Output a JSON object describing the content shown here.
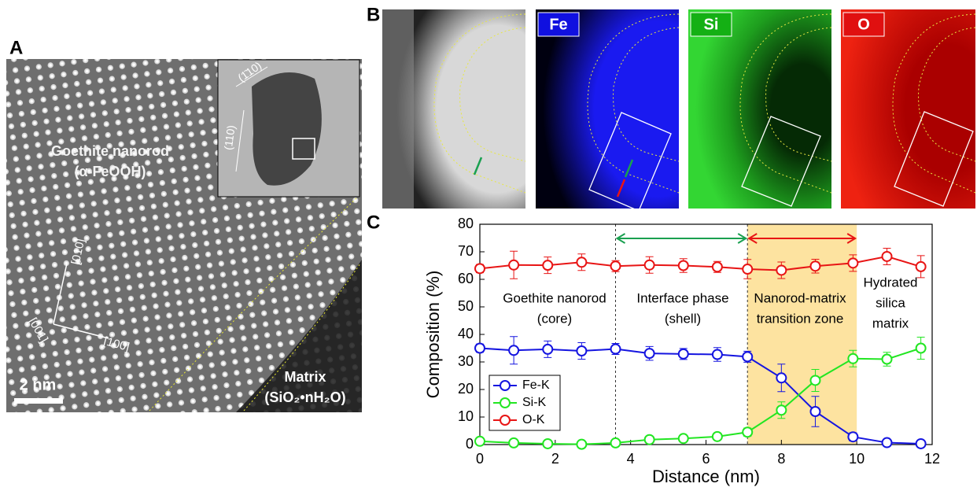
{
  "panel_labels": [
    "A",
    "B",
    "C"
  ],
  "panel_a": {
    "title_lines": [
      "Goethite nanorod",
      "(α-FeOOH)"
    ],
    "axes": [
      "[010]",
      "[001]",
      "[100]"
    ],
    "scale_bar": "2 nm",
    "matrix_lines": [
      "Matrix",
      "(SiO₂•nH₂O)"
    ],
    "inset_planes": [
      "(1̄10)",
      "(110)"
    ]
  },
  "panel_b": {
    "maps": [
      "Fe",
      "Si",
      "O"
    ]
  },
  "chart_data": {
    "type": "line",
    "xlabel": "Distance (nm)",
    "ylabel": "Composition (%)",
    "x": [
      0,
      0.9,
      1.8,
      2.7,
      3.6,
      4.5,
      5.4,
      6.3,
      7.1,
      8.0,
      8.9,
      9.9,
      10.8,
      11.7
    ],
    "series": [
      {
        "name": "Fe-K",
        "color": "#1515e0",
        "values": [
          35,
          34.2,
          34.6,
          34,
          34.7,
          33.1,
          32.9,
          32.7,
          31.9,
          24.2,
          12,
          2.8,
          0.7,
          0.3
        ],
        "errors": [
          1.5,
          5,
          3,
          3,
          2,
          2.5,
          2,
          2.5,
          2,
          5,
          5.5,
          1.5,
          0.5,
          0.5
        ]
      },
      {
        "name": "Si-K",
        "color": "#22e622",
        "values": [
          1.2,
          0.6,
          0.3,
          0.1,
          0.6,
          1.8,
          2.2,
          2.9,
          4.5,
          12.5,
          23.3,
          31.2,
          31,
          35
        ],
        "errors": [
          0.5,
          0.5,
          0.3,
          0.3,
          0.5,
          0.5,
          0.5,
          1,
          1.5,
          3,
          4,
          3,
          2.5,
          4
        ]
      },
      {
        "name": "O-K",
        "color": "#e81515",
        "values": [
          63.9,
          65.2,
          65.1,
          66.2,
          64.8,
          65.2,
          65,
          64.5,
          63.7,
          63.3,
          64.8,
          65.9,
          68.3,
          64.6
        ],
        "errors": [
          1.5,
          5,
          3,
          3,
          2,
          3,
          2.5,
          2,
          3.5,
          3,
          2.5,
          3,
          3,
          4
        ]
      }
    ],
    "xlim": [
      0,
      12
    ],
    "xticks": [
      0,
      2,
      4,
      6,
      8,
      10,
      12
    ],
    "ylim": [
      0,
      80
    ],
    "yticks": [
      0,
      10,
      20,
      30,
      40,
      50,
      60,
      70,
      80
    ],
    "boundaries": [
      3.6,
      7.1,
      10
    ],
    "shade_color": "#fde3a0",
    "arrow_colors": [
      "#1aa050",
      "#e81515"
    ],
    "annotations": [
      [
        "Goethite nanorod",
        "(core)"
      ],
      [
        "Interface phase",
        "(shell)"
      ],
      [
        "Nanorod-matrix",
        "transition zone"
      ],
      [
        "Hydrated",
        "silica",
        "matrix"
      ]
    ],
    "legend": "lower left"
  }
}
